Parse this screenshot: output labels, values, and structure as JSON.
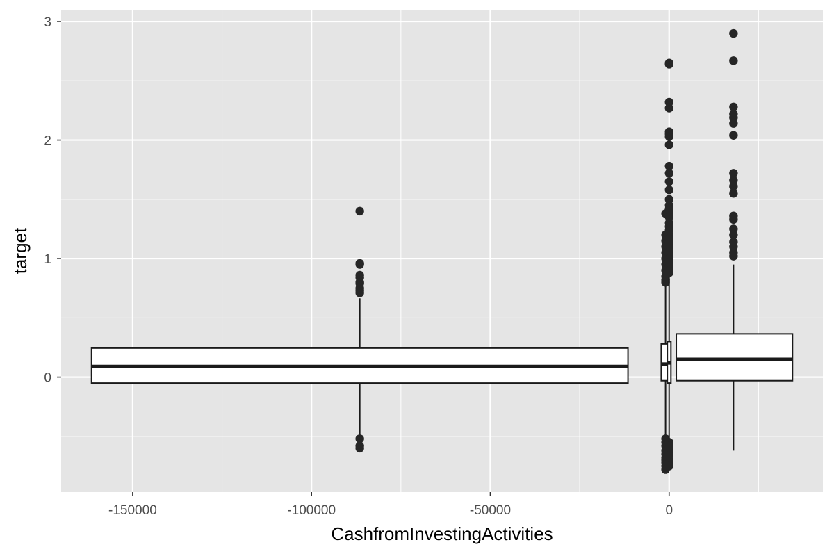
{
  "chart_data": {
    "type": "boxplot",
    "title": "",
    "xlabel": "CashfromInvestingActivities",
    "ylabel": "target",
    "xlim": [
      -170000,
      43000
    ],
    "ylim": [
      -0.97,
      3.1
    ],
    "x_ticks": [
      -150000,
      -100000,
      -50000,
      0
    ],
    "x_tick_labels": [
      "-150000",
      "-100000",
      "-50000",
      "0"
    ],
    "y_ticks": [
      0,
      1,
      2,
      3
    ],
    "y_tick_labels": [
      "0",
      "1",
      "2",
      "3"
    ],
    "grid": true,
    "background_color": "#e5e5e5",
    "grid_color": "#ffffff",
    "box_fill": "#ffffff",
    "line_color": "#1a1a1a",
    "point_color": "#262626",
    "boxes": [
      {
        "x": -86500,
        "x_min": -161500,
        "x_max": -11500,
        "q1": -0.05,
        "median": 0.09,
        "q3": 0.245,
        "whisker_low": -0.52,
        "whisker_high": 0.665,
        "outliers": [
          1.4,
          0.96,
          0.95,
          0.86,
          0.84,
          0.8,
          0.79,
          0.75,
          0.73,
          0.71,
          -0.52,
          -0.58,
          -0.6
        ]
      },
      {
        "x": -1000,
        "x_min": -2200,
        "x_max": 200,
        "q1": -0.03,
        "median": 0.11,
        "q3": 0.28,
        "whisker_low": -0.5,
        "whisker_high": 0.8,
        "outliers": [
          1.38,
          1.2,
          1.15,
          1.1,
          1.05,
          1.0,
          0.95,
          0.9,
          0.85,
          0.82,
          0.8,
          -0.52,
          -0.55,
          -0.58,
          -0.62,
          -0.65,
          -0.68,
          -0.7,
          -0.72,
          -0.75,
          -0.78
        ]
      },
      {
        "x": 0,
        "x_min": -500,
        "x_max": 500,
        "q1": -0.05,
        "median": 0.12,
        "q3": 0.3,
        "whisker_low": -0.7,
        "whisker_high": 0.85,
        "outliers": [
          2.65,
          2.64,
          2.32,
          2.27,
          2.07,
          2.05,
          2.03,
          1.96,
          1.78,
          1.72,
          1.65,
          1.58,
          1.5,
          1.45,
          1.42,
          1.38,
          1.35,
          1.3,
          1.27,
          1.24,
          1.2,
          1.17,
          1.13,
          1.1,
          1.06,
          1.03,
          1.0,
          0.97,
          0.93,
          0.9,
          0.88,
          -0.55,
          -0.58,
          -0.6,
          -0.63,
          -0.66,
          -0.7,
          -0.72,
          -0.75
        ]
      },
      {
        "x": 18000,
        "x_min": 2000,
        "x_max": 34500,
        "q1": -0.03,
        "median": 0.15,
        "q3": 0.365,
        "whisker_low": -0.62,
        "whisker_high": 0.95,
        "outliers": [
          2.9,
          2.67,
          2.28,
          2.22,
          2.19,
          2.14,
          2.04,
          1.72,
          1.66,
          1.61,
          1.55,
          1.36,
          1.33,
          1.25,
          1.2,
          1.14,
          1.1,
          1.05,
          1.02
        ]
      }
    ]
  }
}
